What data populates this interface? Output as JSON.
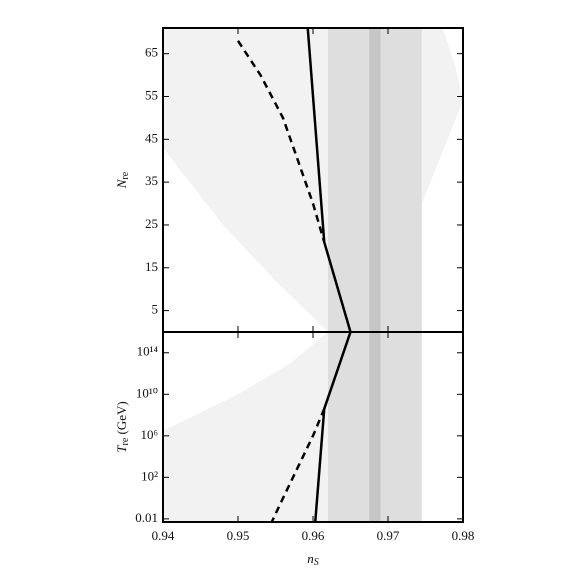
{
  "chart_data": [
    {
      "type": "line",
      "ylabel": "N",
      "ylabel_sub": "re",
      "xlim": [
        0.94,
        0.98
      ],
      "xticks": [
        0.94,
        0.95,
        0.96,
        0.97,
        0.98
      ],
      "ylim": [
        0,
        71
      ],
      "yticks": [
        5,
        15,
        25,
        35,
        45,
        55,
        65
      ],
      "regions": [
        {
          "color": "#f2f2f2",
          "x": [
            0.94,
            0.94,
            0.9773,
            0.979,
            0.98,
            0.9745,
            0.9745,
            0.962,
            0.955,
            0.948,
            0.94
          ],
          "y": [
            43,
            71,
            71,
            62,
            54,
            30,
            0,
            0,
            12,
            25,
            43
          ]
        }
      ],
      "bands": [
        {
          "xlim": [
            0.962,
            0.9745
          ],
          "color": "#dedede"
        },
        {
          "xlim": [
            0.9675,
            0.969
          ],
          "color": "#c6c6c6"
        }
      ],
      "series": [
        {
          "color": "#000000",
          "style": "solid",
          "x": [
            0.9593,
            0.9615,
            0.965
          ],
          "values": [
            71,
            21,
            0
          ]
        },
        {
          "color": "#000000",
          "style": "dashed",
          "x": [
            0.95,
            0.953,
            0.956,
            0.958,
            0.96,
            0.9615
          ],
          "values": [
            68,
            60,
            50,
            40,
            30,
            21
          ]
        }
      ]
    },
    {
      "type": "line",
      "ylabel": "T",
      "ylabel_sub": "re",
      "ylabel_unit": " (GeV)",
      "xlabel": "n",
      "xlabel_sub": "S",
      "xlim": [
        0.94,
        0.98
      ],
      "xticks": [
        0.94,
        0.95,
        0.96,
        0.97,
        0.98
      ],
      "ylog": true,
      "ylim": [
        0.005,
        1e+16
      ],
      "yticks": [
        0.01,
        {
          "value": 100,
          "label": "10²"
        },
        {
          "value": 1000000,
          "label": "10⁶"
        },
        {
          "value": 10000000000,
          "label": "10¹⁰"
        },
        {
          "value": 100000000000000,
          "label": "10¹⁴"
        }
      ],
      "regions": [
        {
          "color": "#f2f2f2",
          "x": [
            0.94,
            0.94,
            0.95,
            0.957,
            0.962,
            0.962
          ],
          "y": [
            0.005,
            3000000,
            10000000000,
            10000000000000,
            1e+16,
            0.005
          ]
        }
      ],
      "bands": [
        {
          "xlim": [
            0.962,
            0.9745
          ],
          "color": "#dedede"
        },
        {
          "xlim": [
            0.9675,
            0.969
          ],
          "color": "#c6c6c6"
        }
      ],
      "series": [
        {
          "color": "#000000",
          "style": "solid",
          "x": [
            0.965,
            0.9615,
            0.9603
          ],
          "values": [
            1e+16,
            400000000,
            0.005
          ]
        },
        {
          "color": "#000000",
          "style": "dashed",
          "x": [
            0.9615,
            0.96,
            0.958,
            0.956,
            0.9545
          ],
          "values": [
            400000000,
            1000000,
            1000,
            1,
            0.005
          ]
        }
      ]
    }
  ]
}
